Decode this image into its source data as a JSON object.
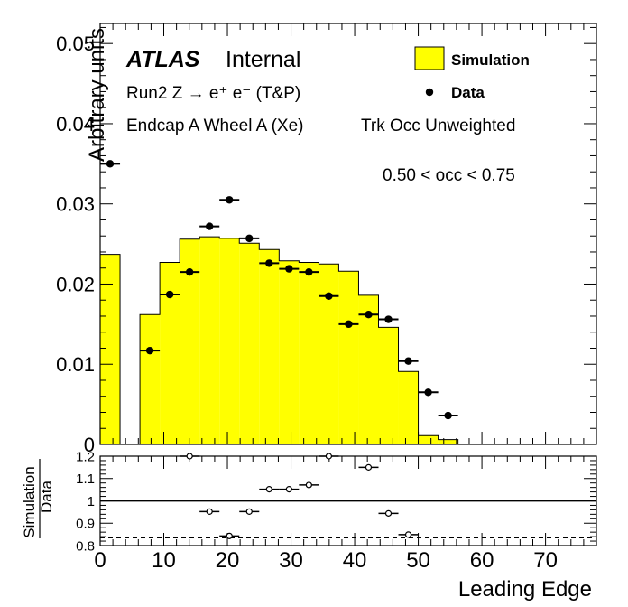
{
  "chart_data": [
    {
      "type": "bar",
      "panel": "main",
      "xlabel": "Leading Edge",
      "ylabel": "Arbitrary units",
      "xlim": [
        0,
        78
      ],
      "ylim": [
        0,
        0.0525
      ],
      "xticks": [
        0,
        10,
        20,
        30,
        40,
        50,
        60,
        70
      ],
      "yticks": [
        0,
        0.01,
        0.02,
        0.03,
        0.04,
        0.05
      ],
      "ytick_labels": [
        "0",
        "0.01",
        "0.02",
        "0.03",
        "0.04",
        "0.05"
      ],
      "annotations": {
        "atlas": "ATLAS",
        "internal": "Internal",
        "line1": "Run2 Z → e⁺ e⁻ (T&P)",
        "line2": "Endcap A Wheel A (Xe)",
        "line3": "Trk Occ Unweighted",
        "range": "0.50 < occ < 0.75"
      },
      "legend": {
        "position": "top-right",
        "entries": [
          "Simulation",
          "Data"
        ]
      },
      "series": [
        {
          "name": "Simulation",
          "kind": "histogram",
          "color": "#ffff00",
          "bin_edges": [
            0,
            3.125,
            6.25,
            9.375,
            12.5,
            15.625,
            18.75,
            21.875,
            25,
            28.125,
            31.25,
            34.375,
            37.5,
            40.625,
            43.75,
            46.875,
            50,
            53.125,
            56.25,
            59.375,
            62.5,
            65.625,
            68.75,
            71.875,
            75
          ],
          "values": [
            0.0237,
            0,
            0.0162,
            0.0227,
            0.0256,
            0.0259,
            0.0257,
            0.0251,
            0.0243,
            0.0229,
            0.0227,
            0.0225,
            0.0216,
            0.0186,
            0.0146,
            0.0091,
            0.0011,
            0.0006,
            0,
            0,
            0,
            0,
            0,
            0
          ]
        },
        {
          "name": "Data",
          "kind": "points",
          "color": "#000000",
          "x": [
            1.5625,
            7.8125,
            10.9375,
            14.0625,
            17.1875,
            20.3125,
            23.4375,
            26.5625,
            29.6875,
            32.8125,
            35.9375,
            39.0625,
            42.1875,
            45.3125,
            48.4375,
            51.5625,
            54.6875
          ],
          "y": [
            0.035,
            0.0117,
            0.0187,
            0.0215,
            0.0272,
            0.0305,
            0.0257,
            0.0226,
            0.0219,
            0.0215,
            0.0185,
            0.015,
            0.0162,
            0.0156,
            0.0104,
            0.0065,
            0.0036
          ]
        }
      ]
    },
    {
      "type": "scatter",
      "panel": "ratio",
      "ylabel": "Simulation / Data",
      "ylabel_numerator": "Simulation",
      "ylabel_denominator": "Data",
      "xlabel": "Leading Edge",
      "xlim": [
        0,
        78
      ],
      "ylim": [
        0.8,
        1.2
      ],
      "xticks": [
        0,
        10,
        20,
        30,
        40,
        50,
        60,
        70
      ],
      "yticks": [
        0.8,
        0.9,
        1,
        1.1,
        1.2
      ],
      "ytick_labels": [
        "0.8",
        "0.9",
        "1",
        "1.1",
        "1.2"
      ],
      "reference_line": 1.0,
      "dashed_line": 0.835,
      "series": [
        {
          "name": "",
          "marker": "open-circle",
          "x": [
            14.0625,
            17.1875,
            20.3125,
            23.4375,
            26.5625,
            29.6875,
            32.8125,
            35.9375,
            42.1875,
            45.3125,
            48.4375
          ],
          "y": [
            1.2,
            0.952,
            0.843,
            0.952,
            1.052,
            1.052,
            1.071,
            1.2,
            1.15,
            0.944,
            0.849
          ]
        }
      ]
    }
  ]
}
